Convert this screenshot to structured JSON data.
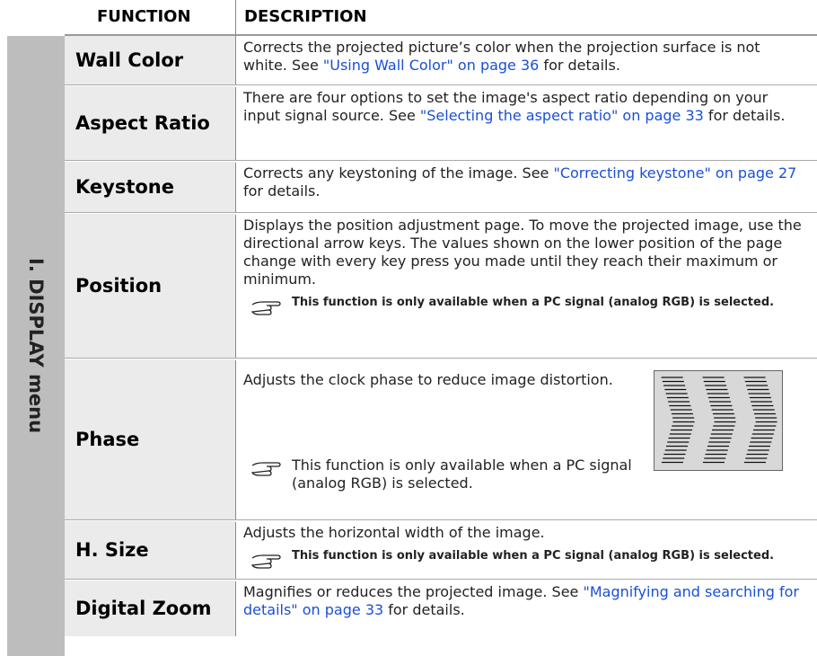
{
  "header": {
    "function": "FUNCTION",
    "description": "DESCRIPTION"
  },
  "section": "I. DISPLAY menu",
  "rows": [
    {
      "function": "Wall Color",
      "text": "Corrects the projected picture’s color when the projection surface is not white. See ",
      "link": "\"Using Wall Color\" on page 36",
      "after": " for details."
    },
    {
      "function": "Aspect Ratio",
      "text": "There are four options to set the image's aspect ratio depending on your input signal source. See ",
      "link": "\"Selecting the aspect ratio\" on page 33",
      "after": " for details."
    },
    {
      "function": "Keystone",
      "text": "Corrects any keystoning of the image. See ",
      "link": "\"Correcting keystone\" on page 27",
      "after": " for details."
    },
    {
      "function": "Position",
      "text": "Displays the position adjustment page. To move the projected image, use the directional arrow keys. The values shown on the lower position of the page change with every key press you made until they reach their maximum or minimum.",
      "note": "This function is only available when a PC signal (analog RGB) is selected."
    },
    {
      "function": "Phase",
      "text": "Adjusts the clock phase to reduce image distortion.",
      "note": "This function is only available when a PC signal (analog RGB) is selected."
    },
    {
      "function": "H. Size",
      "text": "Adjusts the horizontal width of the image.",
      "note": "This function is only available when a PC signal (analog RGB) is selected."
    },
    {
      "function": "Digital Zoom",
      "text": "Magnifies or reduces the projected image. See ",
      "link": "\"Magnifying and searching for details\" on page 33",
      "after": " for details."
    }
  ]
}
